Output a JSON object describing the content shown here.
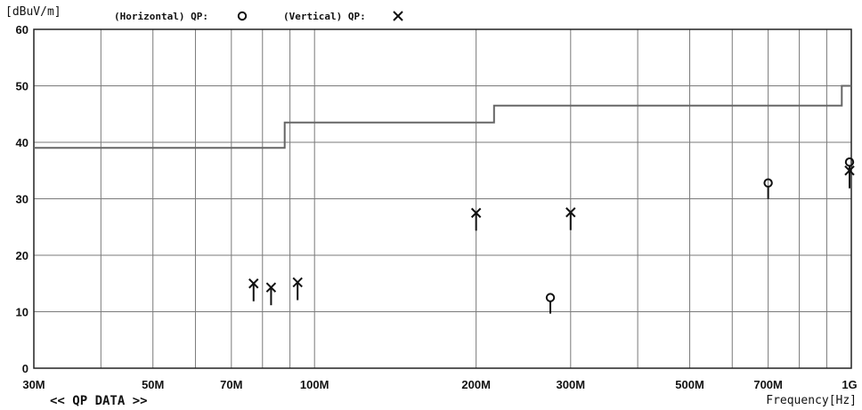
{
  "chart_data": {
    "type": "scatter",
    "y_unit": "[dBuV/m]",
    "xlabel": "Frequency[Hz]",
    "footer": "<< QP DATA >>",
    "x_scale": "log",
    "xlim": [
      30,
      1000
    ],
    "ylim": [
      0,
      60
    ],
    "y_ticks": [
      {
        "value": 0,
        "label": "0"
      },
      {
        "value": 10,
        "label": "10"
      },
      {
        "value": 20,
        "label": "20"
      },
      {
        "value": 30,
        "label": "30"
      },
      {
        "value": 40,
        "label": "40"
      },
      {
        "value": 50,
        "label": "50"
      },
      {
        "value": 60,
        "label": "60"
      }
    ],
    "x_ticks": [
      {
        "value": 30,
        "label": "30M"
      },
      {
        "value": 50,
        "label": "50M"
      },
      {
        "value": 70,
        "label": "70M"
      },
      {
        "value": 100,
        "label": "100M"
      },
      {
        "value": 200,
        "label": "200M"
      },
      {
        "value": 300,
        "label": "300M"
      },
      {
        "value": 500,
        "label": "500M"
      },
      {
        "value": 700,
        "label": "700M"
      },
      {
        "value": 1000,
        "label": "1G"
      }
    ],
    "x_gridlines": [
      40,
      50,
      60,
      70,
      80,
      90,
      100,
      200,
      300,
      400,
      500,
      600,
      700,
      800,
      900
    ],
    "grid": true,
    "legend": [
      {
        "label": "(Horizontal) QP:",
        "marker": "circle"
      },
      {
        "label": "(Vertical) QP:",
        "marker": "x"
      }
    ],
    "limit_line": {
      "points": [
        {
          "x": 30,
          "y": 39
        },
        {
          "x": 88,
          "y": 39
        },
        {
          "x": 88,
          "y": 43.5
        },
        {
          "x": 216,
          "y": 43.5
        },
        {
          "x": 216,
          "y": 46.5
        },
        {
          "x": 960,
          "y": 46.5
        },
        {
          "x": 960,
          "y": 50
        },
        {
          "x": 1000,
          "y": 50
        }
      ],
      "color": "#666666"
    },
    "series": [
      {
        "marker": "circle",
        "points": [
          {
            "x": 275,
            "y": 12.5
          },
          {
            "x": 700,
            "y": 32.8
          },
          {
            "x": 995,
            "y": 36.5
          }
        ]
      },
      {
        "marker": "x",
        "points": [
          {
            "x": 77,
            "y": 15
          },
          {
            "x": 83,
            "y": 14.3
          },
          {
            "x": 93,
            "y": 15.2
          },
          {
            "x": 200,
            "y": 27.5
          },
          {
            "x": 300,
            "y": 27.6
          },
          {
            "x": 995,
            "y": 35
          }
        ]
      }
    ]
  }
}
